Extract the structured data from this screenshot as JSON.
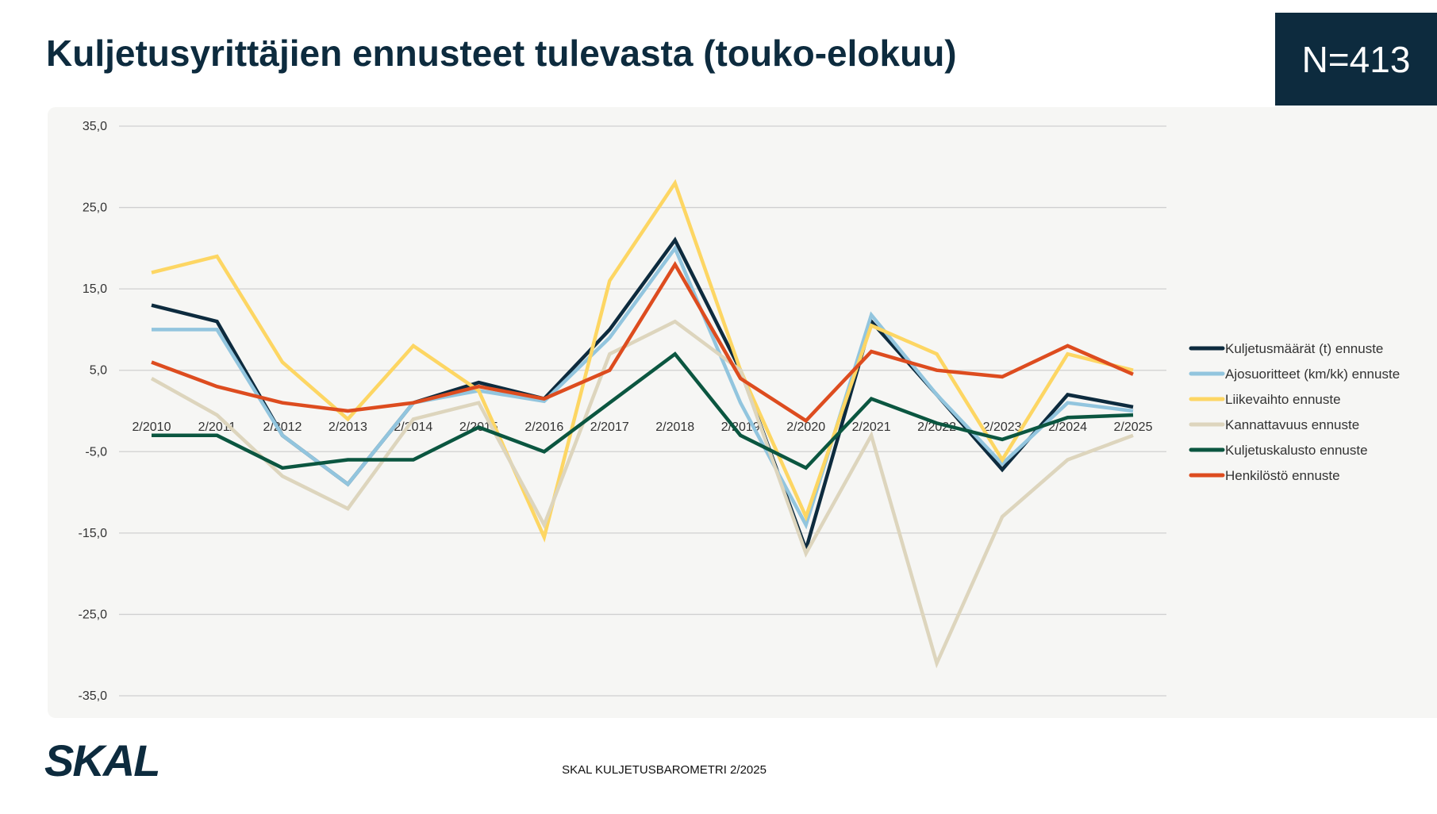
{
  "header": {
    "title": "Kuljetusyrittäjien ennusteet tulevasta (touko-elokuu)",
    "n_label": "N=413"
  },
  "footer": {
    "text": "SKAL KULJETUSBAROMETRI 2/2025"
  },
  "logo": {
    "text": "SKAL",
    "color": "#0d2b3e"
  },
  "colors": {
    "title": "#0d2b3e",
    "panel": "#f6f6f4",
    "grid": "#d0d0d0"
  },
  "chart_data": {
    "type": "line",
    "title": "",
    "xlabel": "",
    "ylabel": "",
    "ylim": [
      -35,
      35
    ],
    "yticks": [
      35,
      25,
      15,
      5,
      -5,
      -15,
      -25,
      -35
    ],
    "ytick_labels": [
      "35,0",
      "25,0",
      "15,0",
      "5,0",
      "-5,0",
      "-15,0",
      "-25,0",
      "-35,0"
    ],
    "grid": true,
    "legend_position": "right",
    "categories": [
      "2/2010",
      "2/2011",
      "2/2012",
      "2/2013",
      "2/2014",
      "2/2015",
      "2/2016",
      "2/2017",
      "2/2018",
      "2/2019",
      "2/2020",
      "2/2021",
      "2/2022",
      "2/2023",
      "2/2024",
      "2/2025"
    ],
    "series": [
      {
        "name": "Kuljetusmäärät (t) ennuste",
        "color": "#0d2b3e",
        "values": [
          13,
          11,
          -3,
          -9,
          1,
          3.5,
          1.5,
          10,
          21,
          5,
          -17,
          11,
          2,
          -7.2,
          2,
          0.5
        ]
      },
      {
        "name": "Ajosuoritteet (km/kk) ennuste",
        "color": "#92c5de",
        "values": [
          10,
          10,
          -3,
          -9,
          1,
          2.5,
          1.2,
          9,
          20,
          1,
          -14,
          11.8,
          2,
          -6.5,
          1,
          0
        ]
      },
      {
        "name": "Liikevaihto ennuste",
        "color": "#fdd663",
        "values": [
          17,
          19,
          6,
          -1,
          8,
          2.5,
          -15.5,
          16,
          28,
          5,
          -13,
          10.5,
          7,
          -6,
          7,
          5
        ]
      },
      {
        "name": "Kannattavuus ennuste",
        "color": "#ddd5bd",
        "values": [
          4,
          -0.5,
          -8,
          -12,
          -1,
          1,
          -14,
          7,
          11,
          5,
          -17.5,
          -3,
          -31,
          -13,
          -6,
          -3
        ]
      },
      {
        "name": "Kuljetuskalusto ennuste",
        "color": "#0b5640",
        "values": [
          -3,
          -3,
          -7,
          -6,
          -6,
          -2,
          -5,
          1,
          7,
          -3,
          -7,
          1.5,
          -1.5,
          -3.5,
          -0.8,
          -0.5
        ]
      },
      {
        "name": "Henkilöstö ennuste",
        "color": "#dd4c1f",
        "values": [
          6,
          3,
          1,
          0,
          1,
          3,
          1.5,
          5,
          18,
          4,
          -1.2,
          7.3,
          5,
          4.2,
          8,
          4.5
        ]
      }
    ]
  }
}
